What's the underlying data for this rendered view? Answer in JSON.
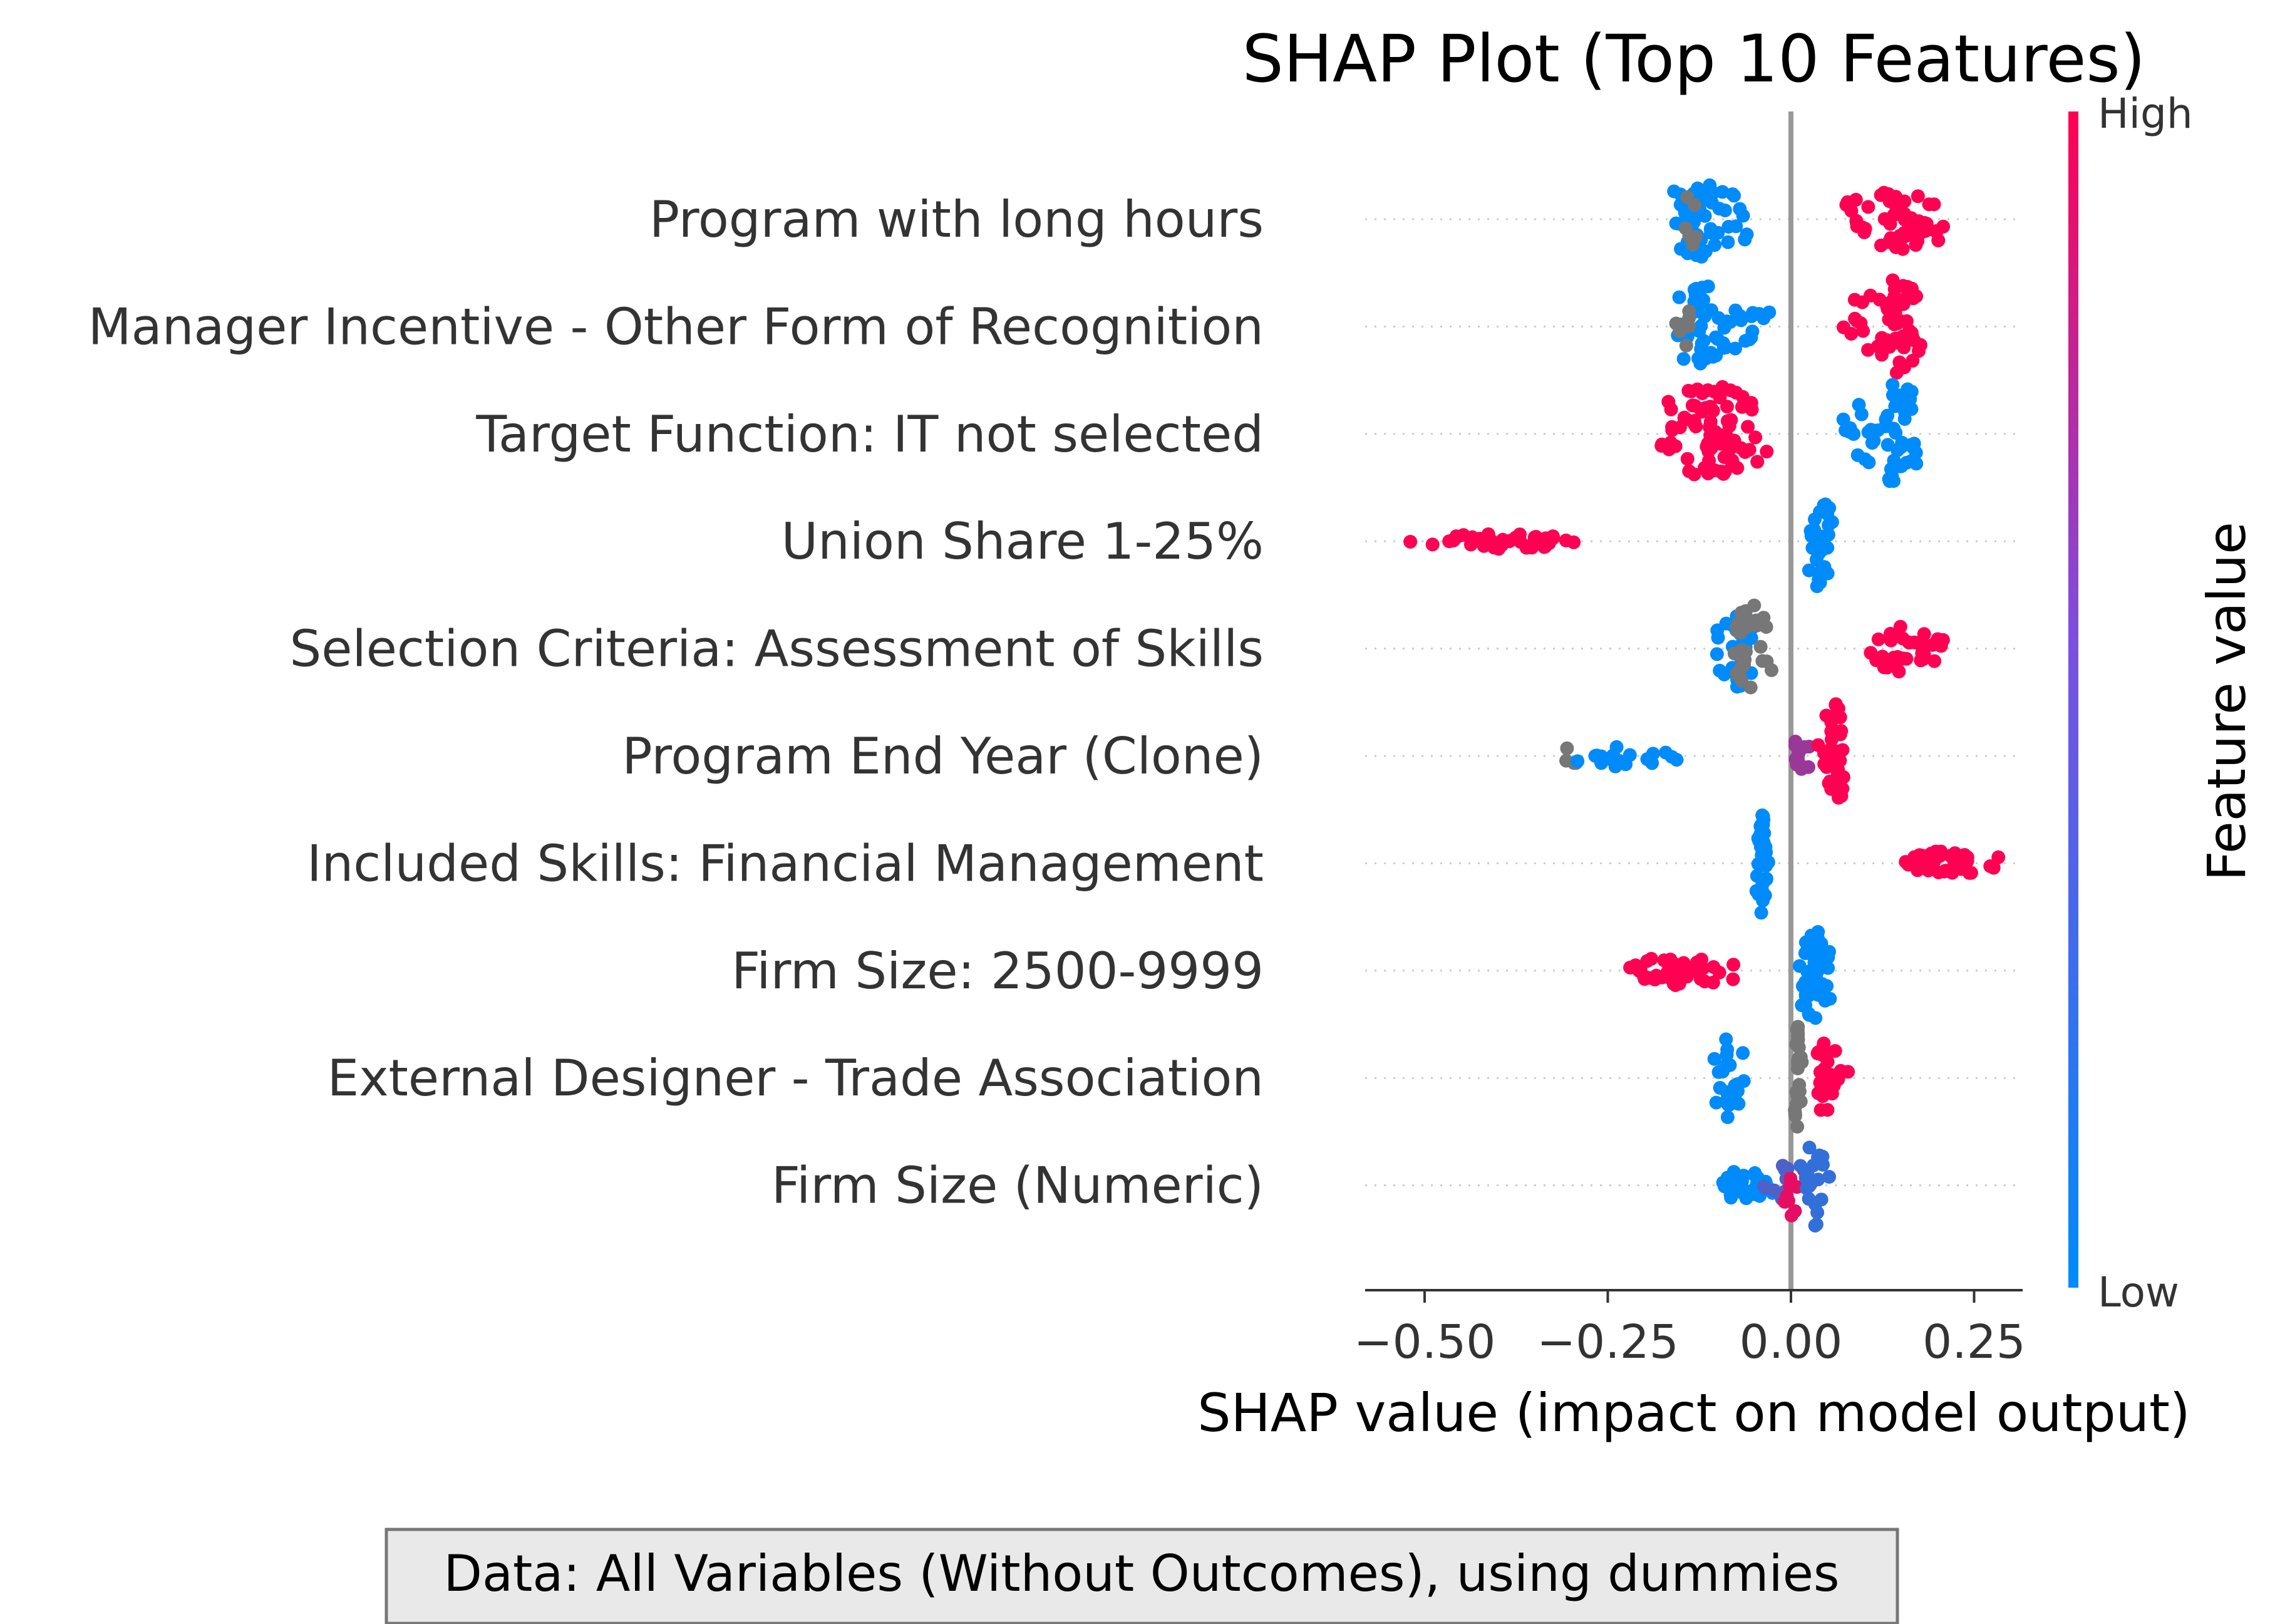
{
  "chart_data": {
    "type": "scatter",
    "subtype": "shap-beeswarm",
    "title": "SHAP Plot (Top 10 Features)",
    "xlabel": "SHAP value (impact on model output)",
    "colorbar": {
      "label": "Feature value",
      "high_label": "High",
      "low_label": "Low",
      "low_color": "#008bfb",
      "high_color": "#ff0052",
      "missing_color": "#777777"
    },
    "xlim": [
      -0.58,
      0.32
    ],
    "xticks": [
      -0.5,
      -0.25,
      0.0,
      0.25
    ],
    "xtick_labels": [
      "−0.50",
      "−0.25",
      "0.00",
      "0.25"
    ],
    "grid": false,
    "features": [
      {
        "name": "Program with long hours",
        "groups": [
          {
            "from": -0.17,
            "to": -0.04,
            "peak": -0.13,
            "n": 55,
            "spread": 0.16,
            "color_value": 0.0
          },
          {
            "from": -0.15,
            "to": -0.12,
            "peak": -0.14,
            "n": 6,
            "spread": 0.12,
            "color_value": null
          },
          {
            "from": 0.06,
            "to": 0.22,
            "peak": 0.15,
            "n": 55,
            "spread": 0.12,
            "color_value": 1.0
          }
        ]
      },
      {
        "name": "Manager Incentive - Other Form of Recognition",
        "groups": [
          {
            "from": -0.16,
            "to": -0.02,
            "peak": -0.12,
            "n": 60,
            "spread": 0.17,
            "color_value": 0.0
          },
          {
            "from": -0.16,
            "to": -0.13,
            "peak": -0.15,
            "n": 6,
            "spread": 0.12,
            "color_value": null
          },
          {
            "from": 0.06,
            "to": 0.19,
            "peak": 0.14,
            "n": 55,
            "spread": 0.18,
            "color_value": 1.0
          }
        ]
      },
      {
        "name": "Target Function: IT not selected",
        "groups": [
          {
            "from": -0.18,
            "to": -0.02,
            "peak": -0.11,
            "n": 75,
            "spread": 0.2,
            "color_value": 1.0
          },
          {
            "from": 0.06,
            "to": 0.18,
            "peak": 0.14,
            "n": 55,
            "spread": 0.2,
            "color_value": 0.0
          }
        ]
      },
      {
        "name": "Union Share 1-25%",
        "groups": [
          {
            "from": -0.54,
            "to": -0.27,
            "peak": -0.4,
            "n": 45,
            "spread": 0.03,
            "color_value": 1.0
          },
          {
            "from": 0.02,
            "to": 0.06,
            "peak": 0.04,
            "n": 30,
            "spread": 0.19,
            "color_value": 0.0
          }
        ]
      },
      {
        "name": "Selection Criteria: Assessment of Skills",
        "groups": [
          {
            "from": -0.11,
            "to": -0.05,
            "peak": -0.07,
            "n": 35,
            "spread": 0.16,
            "color_value": 0.0
          },
          {
            "from": -0.08,
            "to": -0.02,
            "peak": -0.06,
            "n": 30,
            "spread": 0.2,
            "color_value": null
          },
          {
            "from": 0.09,
            "to": 0.22,
            "peak": 0.15,
            "n": 40,
            "spread": 0.09,
            "color_value": 1.0
          }
        ]
      },
      {
        "name": "Program End Year (Clone)",
        "groups": [
          {
            "from": -0.32,
            "to": -0.28,
            "peak": -0.3,
            "n": 4,
            "spread": 0.04,
            "color_value": null
          },
          {
            "from": -0.3,
            "to": -0.14,
            "peak": -0.24,
            "n": 20,
            "spread": 0.04,
            "color_value": 0.0
          },
          {
            "from": -0.02,
            "to": 0.03,
            "peak": 0.01,
            "n": 12,
            "spread": 0.06,
            "color_value": 0.6
          },
          {
            "from": 0.03,
            "to": 0.08,
            "peak": 0.06,
            "n": 35,
            "spread": 0.2,
            "color_value": 1.0
          }
        ]
      },
      {
        "name": "Included Skills: Financial Management",
        "groups": [
          {
            "from": -0.05,
            "to": -0.03,
            "peak": -0.04,
            "n": 35,
            "spread": 0.2,
            "color_value": 0.0
          },
          {
            "from": 0.15,
            "to": 0.29,
            "peak": 0.21,
            "n": 40,
            "spread": 0.05,
            "color_value": 1.0
          }
        ]
      },
      {
        "name": "Firm Size: 2500-9999",
        "groups": [
          {
            "from": -0.23,
            "to": -0.05,
            "peak": -0.15,
            "n": 45,
            "spread": 0.06,
            "color_value": 1.0
          },
          {
            "from": 0.01,
            "to": 0.06,
            "peak": 0.03,
            "n": 45,
            "spread": 0.2,
            "color_value": 0.0
          }
        ]
      },
      {
        "name": "External Designer - Trade Association",
        "groups": [
          {
            "from": -0.12,
            "to": -0.06,
            "peak": -0.09,
            "n": 25,
            "spread": 0.16,
            "color_value": 0.0
          },
          {
            "from": 0.0,
            "to": 0.02,
            "peak": 0.01,
            "n": 25,
            "spread": 0.2,
            "color_value": null
          },
          {
            "from": 0.03,
            "to": 0.08,
            "peak": 0.05,
            "n": 25,
            "spread": 0.15,
            "color_value": 1.0
          }
        ]
      },
      {
        "name": "Firm Size (Numeric)",
        "groups": [
          {
            "from": -0.11,
            "to": -0.02,
            "peak": -0.07,
            "n": 30,
            "spread": 0.06,
            "color_value": 0.0
          },
          {
            "from": -0.04,
            "to": 0.0,
            "peak": -0.01,
            "n": 10,
            "spread": 0.08,
            "color_value": 0.3
          },
          {
            "from": -0.01,
            "to": 0.03,
            "peak": 0.0,
            "n": 10,
            "spread": 0.12,
            "color_value": 0.9
          },
          {
            "from": 0.01,
            "to": 0.06,
            "peak": 0.03,
            "n": 20,
            "spread": 0.18,
            "color_value": 0.2
          }
        ]
      }
    ],
    "annotations": [
      "Data: All Variables (Without Outcomes), using dummies"
    ]
  }
}
